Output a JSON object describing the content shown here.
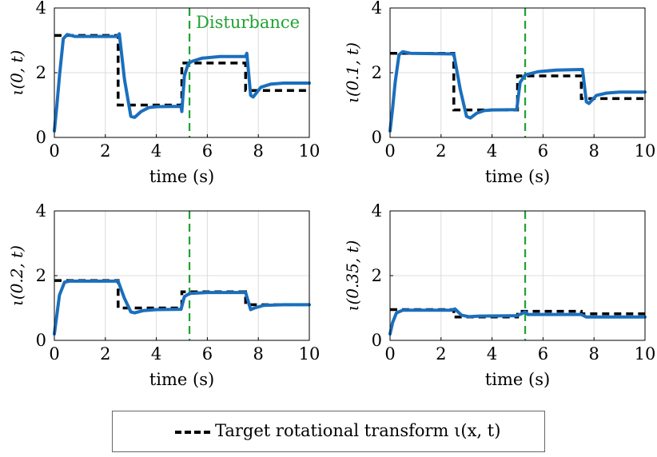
{
  "chart_data": [
    {
      "type": "line",
      "ylabel": "ι(0, t)",
      "xlabel": "time (s)",
      "xlim": [
        0,
        10
      ],
      "ylim": [
        0,
        4
      ],
      "xticks": [
        "0",
        "2",
        "4",
        "6",
        "8",
        "10"
      ],
      "yticks": [
        "0",
        "2",
        "4"
      ],
      "grid": true,
      "annotation": "Disturbance",
      "disturbance_time": 5.3,
      "target": [
        [
          0,
          3.15
        ],
        [
          2.5,
          3.15
        ],
        [
          2.5,
          1.0
        ],
        [
          5.0,
          1.0
        ],
        [
          5.0,
          2.3
        ],
        [
          7.5,
          2.3
        ],
        [
          7.5,
          1.45
        ],
        [
          10,
          1.45
        ]
      ],
      "response": [
        [
          0.0,
          0.2
        ],
        [
          0.1,
          1.0
        ],
        [
          0.2,
          1.9
        ],
        [
          0.35,
          3.05
        ],
        [
          0.5,
          3.18
        ],
        [
          0.8,
          3.12
        ],
        [
          2.45,
          3.12
        ],
        [
          2.55,
          3.2
        ],
        [
          2.75,
          1.8
        ],
        [
          3.0,
          0.65
        ],
        [
          3.15,
          0.62
        ],
        [
          3.4,
          0.8
        ],
        [
          3.7,
          0.92
        ],
        [
          4.0,
          0.95
        ],
        [
          4.97,
          0.96
        ],
        [
          5.0,
          0.8
        ],
        [
          5.1,
          1.9
        ],
        [
          5.25,
          2.28
        ],
        [
          5.4,
          2.35
        ],
        [
          5.8,
          2.45
        ],
        [
          6.5,
          2.5
        ],
        [
          7.5,
          2.5
        ],
        [
          7.55,
          2.6
        ],
        [
          7.7,
          1.3
        ],
        [
          7.8,
          1.25
        ],
        [
          8.1,
          1.55
        ],
        [
          8.5,
          1.65
        ],
        [
          9.0,
          1.68
        ],
        [
          10,
          1.68
        ]
      ]
    },
    {
      "type": "line",
      "ylabel": "ι(0.1, t)",
      "xlabel": "time (s)",
      "xlim": [
        0,
        10
      ],
      "ylim": [
        0,
        4
      ],
      "xticks": [
        "0",
        "2",
        "4",
        "6",
        "8",
        "10"
      ],
      "yticks": [
        "0",
        "2",
        "4"
      ],
      "grid": true,
      "disturbance_time": 5.3,
      "target": [
        [
          0,
          2.6
        ],
        [
          2.5,
          2.6
        ],
        [
          2.5,
          0.85
        ],
        [
          5.0,
          0.85
        ],
        [
          5.0,
          1.9
        ],
        [
          7.5,
          1.9
        ],
        [
          7.5,
          1.2
        ],
        [
          10,
          1.2
        ]
      ],
      "response": [
        [
          0.0,
          0.2
        ],
        [
          0.1,
          0.9
        ],
        [
          0.2,
          1.7
        ],
        [
          0.35,
          2.55
        ],
        [
          0.5,
          2.65
        ],
        [
          0.8,
          2.6
        ],
        [
          2.5,
          2.58
        ],
        [
          2.75,
          1.5
        ],
        [
          3.0,
          0.65
        ],
        [
          3.15,
          0.6
        ],
        [
          3.4,
          0.75
        ],
        [
          3.7,
          0.83
        ],
        [
          4.0,
          0.85
        ],
        [
          4.97,
          0.86
        ],
        [
          5.1,
          1.7
        ],
        [
          5.3,
          1.93
        ],
        [
          5.8,
          2.03
        ],
        [
          6.5,
          2.08
        ],
        [
          7.5,
          2.1
        ],
        [
          7.55,
          2.1
        ],
        [
          7.7,
          1.1
        ],
        [
          7.8,
          1.05
        ],
        [
          8.1,
          1.3
        ],
        [
          8.5,
          1.37
        ],
        [
          9.0,
          1.4
        ],
        [
          10,
          1.4
        ]
      ]
    },
    {
      "type": "line",
      "ylabel": "ι(0.2, t)",
      "xlabel": "time (s)",
      "xlim": [
        0,
        10
      ],
      "ylim": [
        0,
        4
      ],
      "xticks": [
        "0",
        "2",
        "4",
        "6",
        "8",
        "10"
      ],
      "yticks": [
        "0",
        "2",
        "4"
      ],
      "grid": true,
      "disturbance_time": 5.3,
      "target": [
        [
          0,
          1.85
        ],
        [
          2.5,
          1.85
        ],
        [
          2.5,
          1.0
        ],
        [
          5.0,
          1.0
        ],
        [
          5.0,
          1.5
        ],
        [
          7.5,
          1.5
        ],
        [
          7.5,
          1.1
        ],
        [
          10,
          1.1
        ]
      ],
      "response": [
        [
          0.0,
          0.2
        ],
        [
          0.1,
          0.8
        ],
        [
          0.2,
          1.4
        ],
        [
          0.4,
          1.8
        ],
        [
          0.6,
          1.83
        ],
        [
          2.5,
          1.83
        ],
        [
          2.75,
          1.3
        ],
        [
          3.0,
          0.88
        ],
        [
          3.15,
          0.85
        ],
        [
          3.5,
          0.92
        ],
        [
          4.0,
          0.95
        ],
        [
          4.97,
          0.96
        ],
        [
          5.1,
          1.35
        ],
        [
          5.3,
          1.45
        ],
        [
          6.0,
          1.48
        ],
        [
          7.5,
          1.48
        ],
        [
          7.7,
          0.95
        ],
        [
          7.85,
          1.0
        ],
        [
          8.2,
          1.08
        ],
        [
          9.0,
          1.1
        ],
        [
          10,
          1.1
        ]
      ]
    },
    {
      "type": "line",
      "ylabel": "ι(0.35, t)",
      "xlabel": "time (s)",
      "xlim": [
        0,
        10
      ],
      "ylim": [
        0,
        4
      ],
      "xticks": [
        "0",
        "2",
        "4",
        "6",
        "8",
        "10"
      ],
      "yticks": [
        "0",
        "2",
        "4"
      ],
      "grid": true,
      "disturbance_time": 5.3,
      "target": [
        [
          0,
          0.95
        ],
        [
          2.5,
          0.95
        ],
        [
          2.5,
          0.72
        ],
        [
          5.0,
          0.72
        ],
        [
          5.0,
          0.9
        ],
        [
          7.5,
          0.9
        ],
        [
          7.5,
          0.82
        ],
        [
          10,
          0.82
        ]
      ],
      "response": [
        [
          0.0,
          0.2
        ],
        [
          0.1,
          0.55
        ],
        [
          0.25,
          0.85
        ],
        [
          0.5,
          0.93
        ],
        [
          2.4,
          0.93
        ],
        [
          2.55,
          0.97
        ],
        [
          2.8,
          0.78
        ],
        [
          3.1,
          0.73
        ],
        [
          3.5,
          0.75
        ],
        [
          4.97,
          0.76
        ],
        [
          5.15,
          0.82
        ],
        [
          5.3,
          0.88
        ],
        [
          5.4,
          0.8
        ],
        [
          6.0,
          0.8
        ],
        [
          7.5,
          0.8
        ],
        [
          7.7,
          0.72
        ],
        [
          8.2,
          0.72
        ],
        [
          10,
          0.72
        ]
      ]
    }
  ],
  "legend": {
    "label": "Target rotational transform ι(x, t)",
    "placement": "bottom-center"
  },
  "colors": {
    "response": "#1a6fbd",
    "target": "#000000",
    "disturbance": "#21a232",
    "grid": "#dcdcdc"
  }
}
